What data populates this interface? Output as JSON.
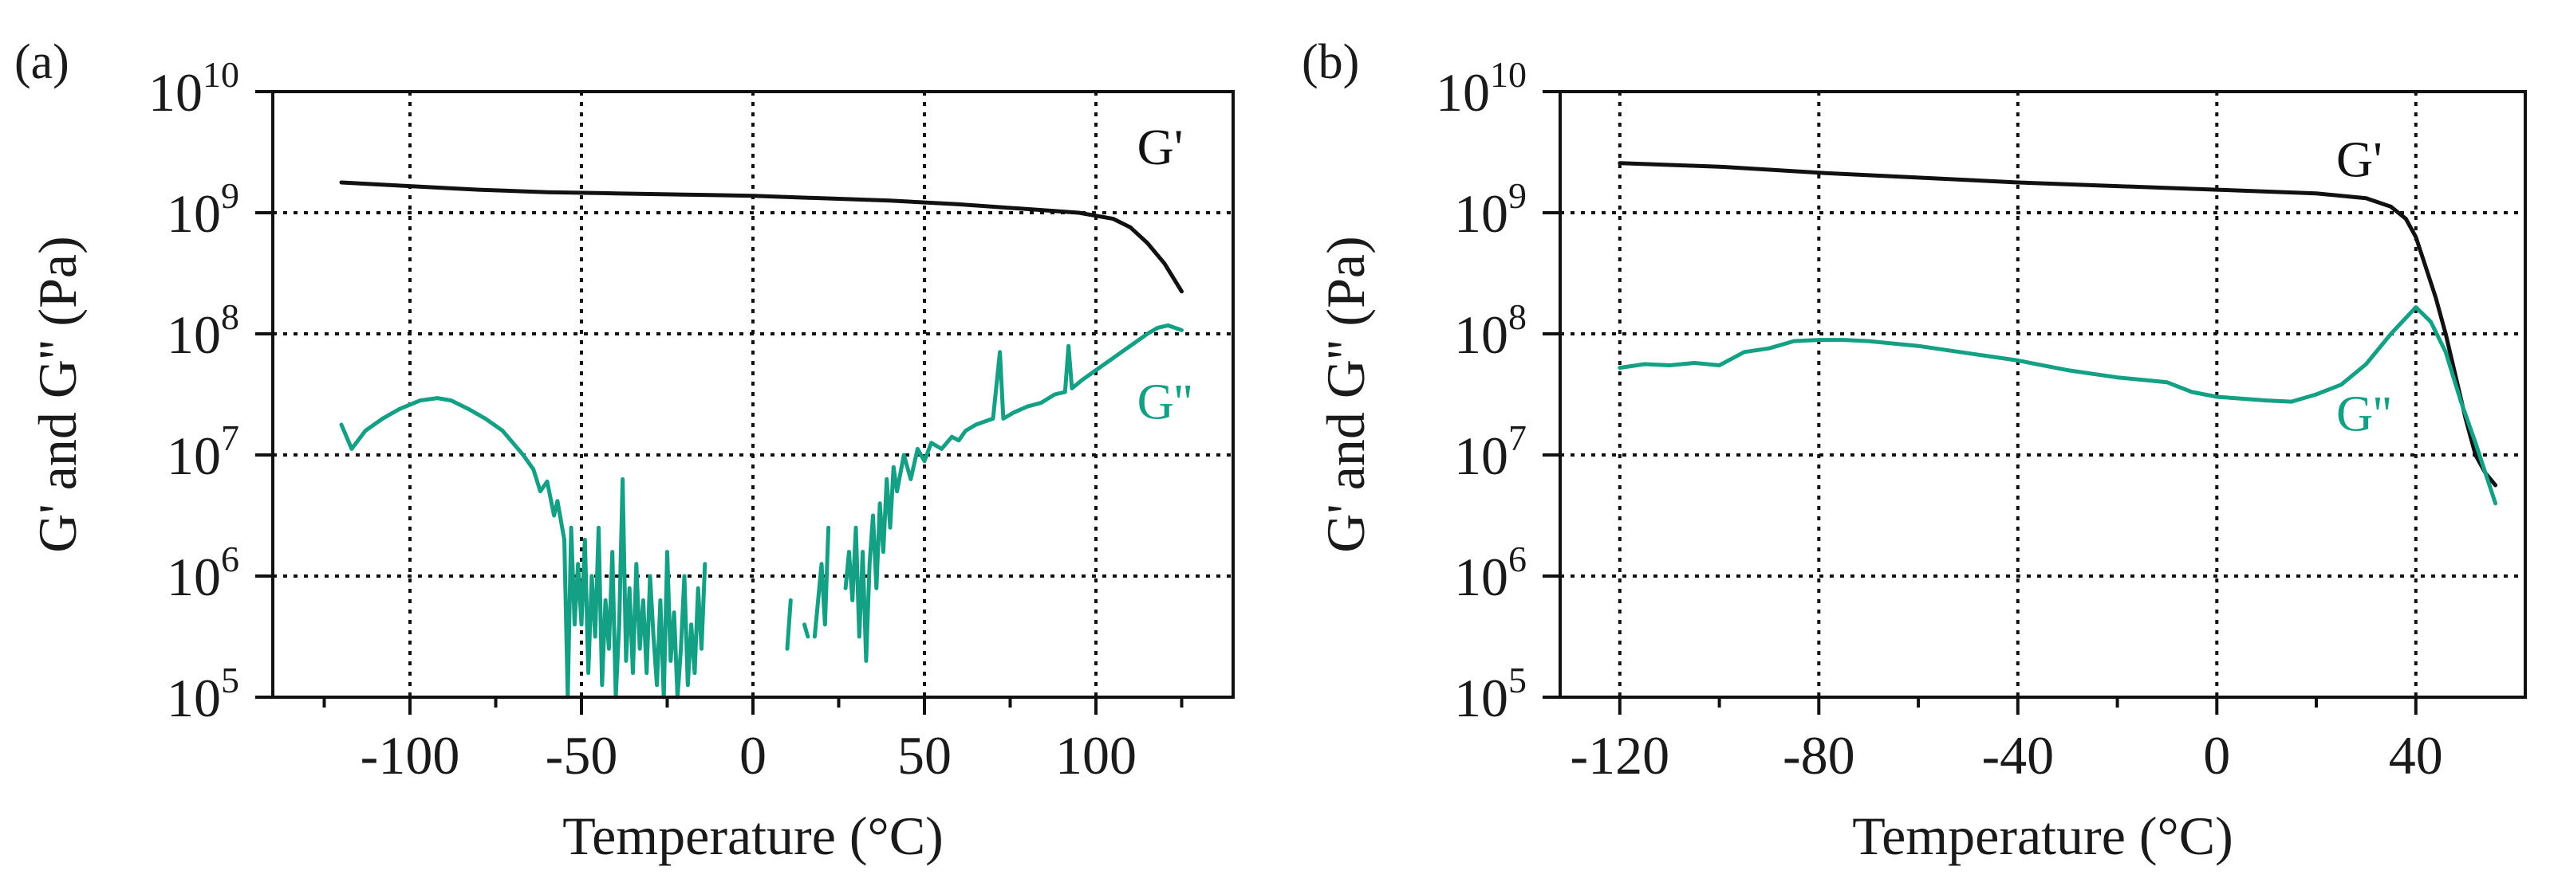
{
  "colors": {
    "g_prime": "#111111",
    "g_double_prime": "#13a085",
    "grid": "#111111"
  },
  "chart_data": [
    {
      "type": "line",
      "panel_label": "(a)",
      "xlabel": "Temperature (°C)",
      "ylabel": "G' and G'' (Pa)",
      "xlim": [
        -140,
        140
      ],
      "ylim_log10": [
        5,
        10
      ],
      "yscale": "log",
      "grid": true,
      "x_ticks": [
        -100,
        -50,
        0,
        50,
        100
      ],
      "x_tick_labels": [
        "-100",
        "-50",
        "0",
        "50",
        "100"
      ],
      "x_minor_ticks": [
        -125,
        -75,
        -25,
        25,
        75,
        125
      ],
      "y_tick_exponents": [
        5,
        6,
        7,
        8,
        9,
        10
      ],
      "y_tick_base": "10",
      "series": [
        {
          "name": "G'",
          "color_key": "g_prime",
          "label_at": [
            112,
            9.4
          ],
          "points": [
            [
              -120,
              9.25
            ],
            [
              -100,
              9.22
            ],
            [
              -80,
              9.19
            ],
            [
              -60,
              9.17
            ],
            [
              -40,
              9.16
            ],
            [
              -20,
              9.15
            ],
            [
              0,
              9.14
            ],
            [
              20,
              9.12
            ],
            [
              40,
              9.1
            ],
            [
              60,
              9.07
            ],
            [
              80,
              9.03
            ],
            [
              95,
              9.0
            ],
            [
              105,
              8.95
            ],
            [
              110,
              8.88
            ],
            [
              115,
              8.75
            ],
            [
              120,
              8.58
            ],
            [
              125,
              8.35
            ]
          ]
        },
        {
          "name": "G''",
          "color_key": "g_double_prime",
          "label_at": [
            112,
            7.3
          ],
          "segments": [
            [
              [
                -120,
                7.25
              ],
              [
                -117,
                7.05
              ],
              [
                -113,
                7.2
              ],
              [
                -108,
                7.3
              ],
              [
                -103,
                7.38
              ],
              [
                -97,
                7.45
              ],
              [
                -92,
                7.47
              ],
              [
                -88,
                7.45
              ],
              [
                -83,
                7.38
              ],
              [
                -78,
                7.3
              ],
              [
                -73,
                7.2
              ],
              [
                -70,
                7.1
              ],
              [
                -67,
                7.0
              ],
              [
                -64,
                6.88
              ],
              [
                -62,
                6.7
              ],
              [
                -60,
                6.78
              ],
              [
                -58,
                6.5
              ],
              [
                -57,
                6.62
              ],
              [
                -55,
                6.3
              ],
              [
                -54,
                5.0
              ],
              [
                -53,
                6.4
              ],
              [
                -52,
                5.6
              ],
              [
                -51,
                6.1
              ],
              [
                -50,
                5.6
              ],
              [
                -49,
                6.3
              ],
              [
                -48,
                5.2
              ],
              [
                -47,
                6.0
              ],
              [
                -46,
                5.5
              ],
              [
                -45,
                6.4
              ],
              [
                -44,
                5.1
              ],
              [
                -43,
                5.8
              ],
              [
                -42,
                5.4
              ],
              [
                -41,
                6.2
              ],
              [
                -40,
                5.0
              ],
              [
                -39,
                5.6
              ],
              [
                -38,
                6.8
              ],
              [
                -37,
                5.3
              ],
              [
                -36,
                5.9
              ],
              [
                -35,
                5.2
              ],
              [
                -34,
                6.1
              ],
              [
                -33,
                5.4
              ],
              [
                -32,
                5.8
              ],
              [
                -31,
                5.2
              ],
              [
                -30,
                6.0
              ],
              [
                -29,
                5.5
              ],
              [
                -28,
                5.1
              ],
              [
                -27,
                5.8
              ],
              [
                -26,
                5.0
              ],
              [
                -25,
                6.2
              ],
              [
                -24,
                5.3
              ],
              [
                -23,
                5.7
              ],
              [
                -22,
                5.0
              ],
              [
                -21,
                5.4
              ],
              [
                -20,
                6.0
              ],
              [
                -19,
                5.1
              ],
              [
                -18,
                5.6
              ],
              [
                -17,
                5.2
              ],
              [
                -16,
                5.9
              ],
              [
                -15,
                5.4
              ],
              [
                -14,
                6.1
              ]
            ],
            [
              [
                10,
                5.4
              ],
              [
                11,
                5.8
              ]
            ],
            [
              [
                15,
                5.6
              ],
              [
                16,
                5.5
              ]
            ],
            [
              [
                18,
                5.5
              ],
              [
                19,
                5.8
              ],
              [
                20,
                6.1
              ],
              [
                21,
                5.6
              ],
              [
                22,
                6.4
              ]
            ],
            [
              [
                27,
                5.9
              ],
              [
                28,
                6.2
              ],
              [
                29,
                5.8
              ],
              [
                30,
                6.4
              ],
              [
                31,
                5.5
              ],
              [
                32,
                6.2
              ],
              [
                33,
                5.3
              ],
              [
                34,
                6.1
              ],
              [
                35,
                6.5
              ],
              [
                36,
                5.9
              ],
              [
                37,
                6.6
              ],
              [
                38,
                6.2
              ],
              [
                39,
                6.8
              ],
              [
                40,
                6.4
              ],
              [
                41,
                6.9
              ],
              [
                42,
                6.7
              ],
              [
                44,
                7.0
              ],
              [
                46,
                6.8
              ],
              [
                48,
                7.05
              ],
              [
                50,
                6.95
              ],
              [
                52,
                7.1
              ],
              [
                55,
                7.05
              ],
              [
                58,
                7.15
              ],
              [
                60,
                7.12
              ],
              [
                62,
                7.2
              ],
              [
                65,
                7.25
              ],
              [
                68,
                7.28
              ],
              [
                70,
                7.3
              ],
              [
                72,
                7.85
              ],
              [
                73,
                7.3
              ],
              [
                76,
                7.35
              ],
              [
                80,
                7.4
              ],
              [
                84,
                7.43
              ],
              [
                88,
                7.5
              ],
              [
                91,
                7.52
              ],
              [
                92,
                7.9
              ],
              [
                93,
                7.55
              ],
              [
                96,
                7.62
              ],
              [
                100,
                7.7
              ],
              [
                105,
                7.8
              ],
              [
                110,
                7.9
              ],
              [
                115,
                8.0
              ],
              [
                118,
                8.05
              ],
              [
                121,
                8.07
              ],
              [
                123,
                8.05
              ],
              [
                125,
                8.03
              ]
            ]
          ]
        }
      ]
    },
    {
      "type": "line",
      "panel_label": "(b)",
      "xlabel": "Temperature (°C)",
      "ylabel": "G' and G'' (Pa)",
      "xlim": [
        -132,
        62
      ],
      "ylim_log10": [
        5,
        10
      ],
      "yscale": "log",
      "grid": true,
      "x_ticks": [
        -120,
        -80,
        -40,
        0,
        40
      ],
      "x_tick_labels": [
        "-120",
        "-80",
        "-40",
        "0",
        "40"
      ],
      "x_minor_ticks": [
        -100,
        -60,
        -20,
        20
      ],
      "y_tick_exponents": [
        5,
        6,
        7,
        8,
        9,
        10
      ],
      "y_tick_base": "10",
      "series": [
        {
          "name": "G'",
          "color_key": "g_prime",
          "label_at": [
            24,
            9.3
          ],
          "points": [
            [
              -120,
              9.41
            ],
            [
              -100,
              9.38
            ],
            [
              -80,
              9.33
            ],
            [
              -60,
              9.29
            ],
            [
              -40,
              9.25
            ],
            [
              -20,
              9.22
            ],
            [
              0,
              9.19
            ],
            [
              20,
              9.16
            ],
            [
              30,
              9.12
            ],
            [
              35,
              9.05
            ],
            [
              38,
              8.95
            ],
            [
              40,
              8.8
            ],
            [
              42,
              8.55
            ],
            [
              44,
              8.3
            ],
            [
              46,
              8.0
            ],
            [
              48,
              7.65
            ],
            [
              50,
              7.3
            ],
            [
              52,
              7.0
            ],
            [
              54,
              6.85
            ],
            [
              56,
              6.75
            ]
          ]
        },
        {
          "name": "G''",
          "color_key": "g_double_prime",
          "label_at": [
            24,
            7.2
          ],
          "points": [
            [
              -120,
              7.72
            ],
            [
              -115,
              7.75
            ],
            [
              -110,
              7.74
            ],
            [
              -105,
              7.76
            ],
            [
              -100,
              7.74
            ],
            [
              -95,
              7.85
            ],
            [
              -90,
              7.88
            ],
            [
              -85,
              7.94
            ],
            [
              -80,
              7.95
            ],
            [
              -75,
              7.95
            ],
            [
              -70,
              7.94
            ],
            [
              -60,
              7.9
            ],
            [
              -50,
              7.84
            ],
            [
              -40,
              7.78
            ],
            [
              -30,
              7.7
            ],
            [
              -20,
              7.64
            ],
            [
              -10,
              7.6
            ],
            [
              -5,
              7.52
            ],
            [
              0,
              7.48
            ],
            [
              10,
              7.45
            ],
            [
              15,
              7.44
            ],
            [
              20,
              7.5
            ],
            [
              25,
              7.58
            ],
            [
              30,
              7.75
            ],
            [
              35,
              8.0
            ],
            [
              40,
              8.22
            ],
            [
              43,
              8.1
            ],
            [
              46,
              7.85
            ],
            [
              49,
              7.45
            ],
            [
              52,
              7.1
            ],
            [
              54,
              6.85
            ],
            [
              56,
              6.6
            ]
          ]
        }
      ]
    }
  ]
}
